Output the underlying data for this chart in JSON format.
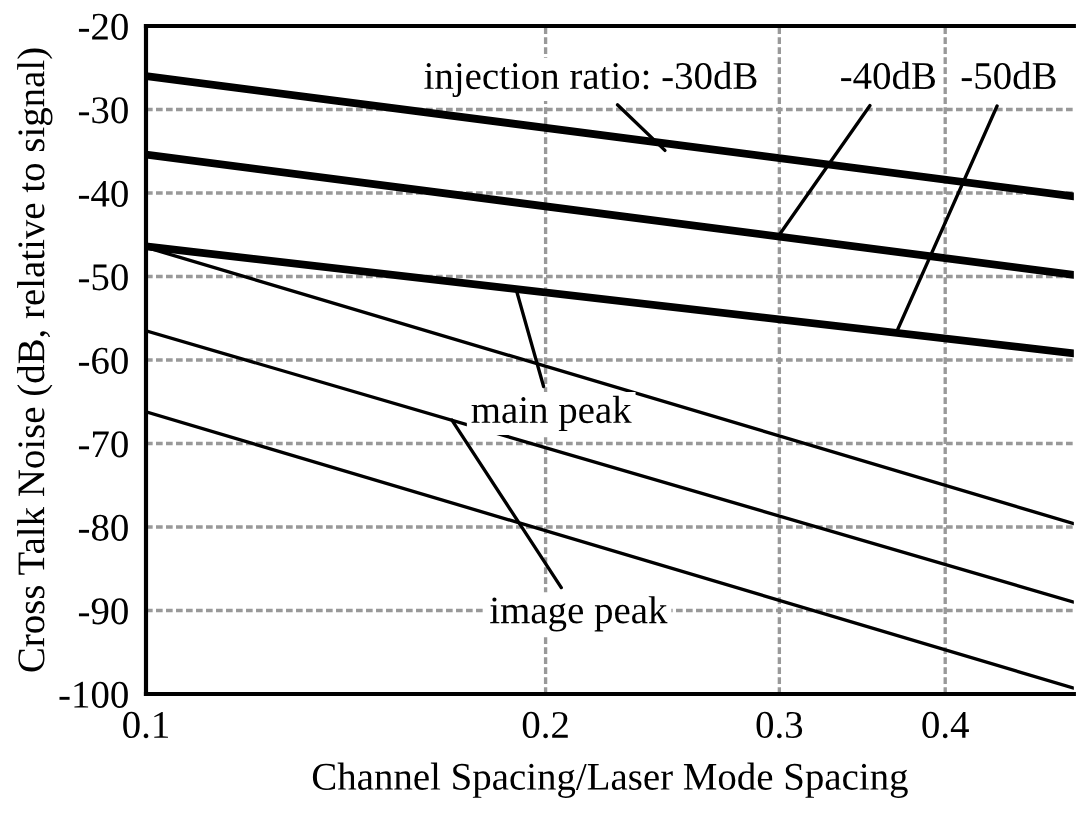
{
  "chart_data": {
    "type": "line",
    "xlabel": "Channel Spacing/Laser Mode Spacing",
    "ylabel": "Cross Talk Noise (dB, relative to signal)",
    "log": "x",
    "xlim": [
      0.1,
      0.5
    ],
    "xticks": [
      0.1,
      0.2,
      0.3,
      0.4
    ],
    "ylim": [
      -100,
      -20
    ],
    "yticks": [
      -20,
      -30,
      -40,
      -50,
      -60,
      -70,
      -80,
      -90,
      -100
    ],
    "grid": true,
    "marker": "none",
    "line_style": "solid",
    "x": [
      0.1,
      0.5
    ],
    "series": [
      {
        "color": "#000000",
        "values": [
          -26.0,
          -40.4
        ]
      },
      {
        "color": "#000000",
        "values": [
          -35.4,
          -49.8
        ]
      },
      {
        "color": "#000000",
        "values": [
          -46.4,
          -59.2
        ]
      },
      {
        "color": "#000000",
        "values": [
          -46.5,
          -79.6
        ]
      },
      {
        "color": "#000000",
        "values": [
          -56.5,
          -89.0
        ]
      },
      {
        "color": "#000000",
        "values": [
          -66.2,
          -99.3
        ]
      }
    ],
    "annotations": [
      {
        "text": "injection ratio: -30dB",
        "x": 0.246,
        "y": -34.9
      },
      {
        "text": "-40dB",
        "x": 0.3,
        "y": -45.0
      },
      {
        "text": "-50dB",
        "x": 0.368,
        "y": -56.5
      },
      {
        "text": "main peak",
        "x": 0.19,
        "y": -51.5
      },
      {
        "text": "image peak",
        "x": 0.17,
        "y": -67.2
      }
    ]
  }
}
